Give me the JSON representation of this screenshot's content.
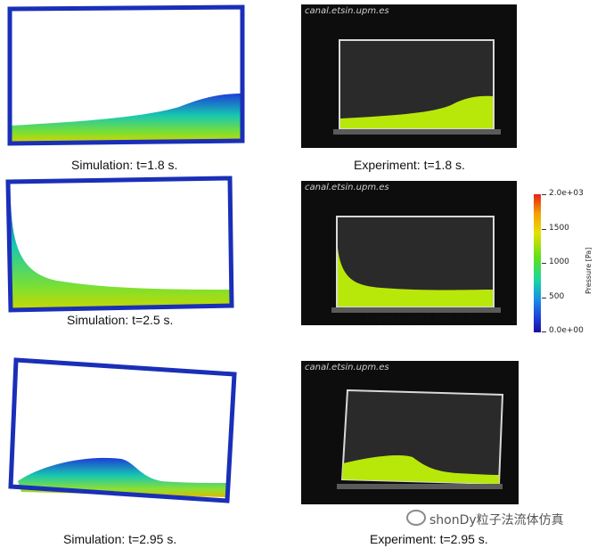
{
  "rows": [
    {
      "simulation_caption": "Simulation: t=1.8 s.",
      "experiment_caption": "Experiment: t=1.8 s.",
      "watermark": "canal.etsin.upm.es"
    },
    {
      "simulation_caption": "Simulation: t=2.5 s.",
      "experiment_caption": "Experiment: t=2.5 s.",
      "watermark": "canal.etsin.upm.es"
    },
    {
      "simulation_caption": "Simulation: t=2.95 s.",
      "experiment_caption": "Experiment: t=2.95 s.",
      "watermark": "canal.etsin.upm.es"
    }
  ],
  "colorbar": {
    "title": "Pressure [Pa]",
    "labels": [
      "2.0e+03",
      "1500",
      "1000",
      "500",
      "0.0e+00"
    ]
  },
  "footer": {
    "text": "shonDy粒子法流体仿真",
    "icon": "wechat-icon"
  },
  "colors": {
    "tank_frame": "#1a2fb8",
    "fluid_low": "#1d3dd9",
    "fluid_mid": "#18c8b0",
    "fluid_high": "#d8e000",
    "exp_liquid": "#b8e80a",
    "photo_bg": "#0d0d0d"
  }
}
